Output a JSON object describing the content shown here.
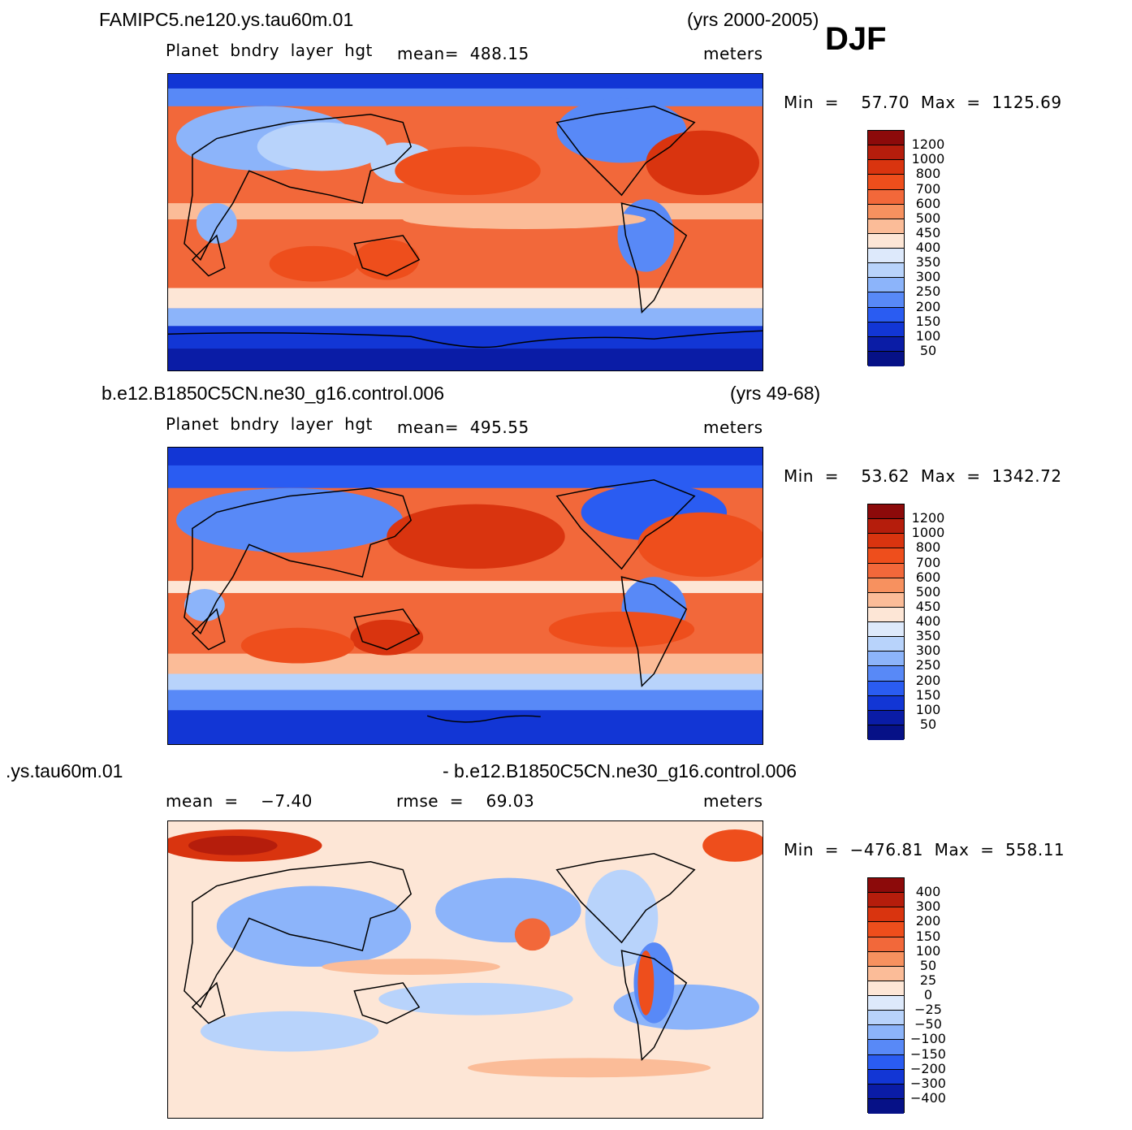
{
  "season": "DJF",
  "panels": [
    {
      "case": "FAMIPC5.ne120.ys.tau60m.01",
      "years": "(yrs 2000-2005)",
      "left_sub": "Planet  bndry  layer  hgt",
      "mid_sub": "mean=  488.15",
      "units": "meters",
      "minmax": "Min  =    57.70  Max  =  1125.69",
      "levels": [
        "1200",
        "1000",
        "800",
        "700",
        "600",
        "500",
        "450",
        "400",
        "350",
        "300",
        "250",
        "200",
        "150",
        "100",
        "50"
      ]
    },
    {
      "case": "b.e12.B1850C5CN.ne30_g16.control.006",
      "years": "(yrs 49-68)",
      "left_sub": "Planet  bndry  layer  hgt",
      "mid_sub": "mean=  495.55",
      "units": "meters",
      "minmax": "Min  =    53.62  Max  =  1342.72",
      "levels": [
        "1200",
        "1000",
        "800",
        "700",
        "600",
        "500",
        "450",
        "400",
        "350",
        "300",
        "250",
        "200",
        "150",
        "100",
        "50"
      ]
    },
    {
      "case": ".ys.tau60m.01",
      "years": "- b.e12.B1850C5CN.ne30_g16.control.006",
      "left_sub": "mean  =    −7.40",
      "mid_sub": "rmse  =    69.03",
      "units": "meters",
      "minmax": "Min  =  −476.81  Max  =  558.11",
      "levels": [
        "400",
        "300",
        "200",
        "150",
        "100",
        "50",
        "25",
        "0",
        "−25",
        "−50",
        "−100",
        "−150",
        "−200",
        "−300",
        "−400"
      ]
    }
  ],
  "colors": {
    "scale": [
      "#8c0a0a",
      "#b51d0c",
      "#d9340f",
      "#ee4e1c",
      "#f2683a",
      "#f7915f",
      "#fbbc98",
      "#fde6d6",
      "#dde9fb",
      "#b8d3fb",
      "#8cb4fa",
      "#5889f7",
      "#2a5cf2",
      "#1236d5",
      "#0a1ca6",
      "#061187"
    ]
  }
}
